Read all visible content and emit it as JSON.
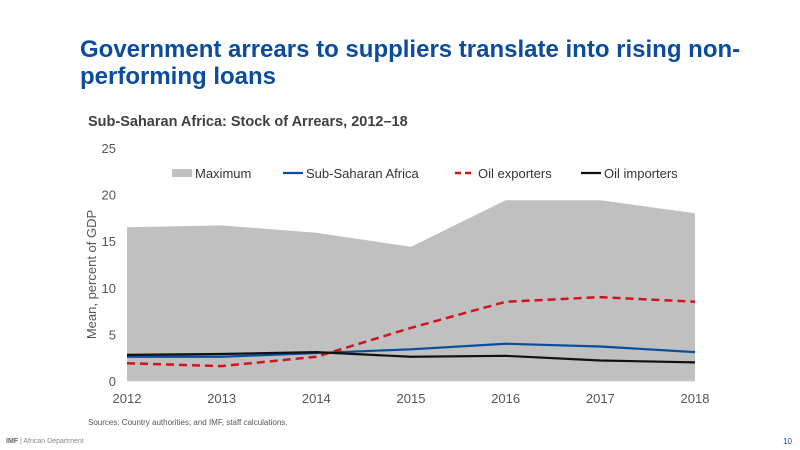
{
  "slide": {
    "title": "Government arrears to suppliers translate into rising non-performing loans",
    "sources": "Sources: Country authorities; and IMF, staff calculations.",
    "footer_org": "IMF",
    "footer_sep": " | ",
    "footer_dept": "African Department",
    "page_number": "10"
  },
  "colors": {
    "title": "#0b4c9c",
    "maximum": "#c0c0c0",
    "ssa": "#0b4c9c",
    "oil_exporters": "#d0141c",
    "oil_importers": "#111111"
  },
  "chart_data": {
    "type": "line",
    "title": "Sub-Saharan Africa: Stock of Arrears, 2012–18",
    "xlabel": "",
    "ylabel": "Mean, percent of GDP",
    "x": [
      "2012",
      "2013",
      "2014",
      "2015",
      "2016",
      "2017",
      "2018"
    ],
    "ylim": [
      0,
      25
    ],
    "yticks": [
      "0",
      "5",
      "10",
      "15",
      "20",
      "25"
    ],
    "grid": false,
    "legend_position": "top",
    "series": [
      {
        "name": "Maximum",
        "style": "area",
        "values": [
          16.5,
          16.7,
          15.9,
          14.4,
          19.4,
          19.4,
          18.0
        ]
      },
      {
        "name": "Sub-Saharan Africa",
        "style": "solid",
        "values": [
          2.6,
          2.6,
          3.0,
          3.4,
          4.0,
          3.7,
          3.1
        ]
      },
      {
        "name": "Oil exporters",
        "style": "dashed",
        "values": [
          1.9,
          1.6,
          2.6,
          5.7,
          8.5,
          9.0,
          8.5
        ]
      },
      {
        "name": "Oil importers",
        "style": "solid",
        "values": [
          2.8,
          2.9,
          3.1,
          2.6,
          2.7,
          2.2,
          2.0
        ]
      }
    ]
  }
}
